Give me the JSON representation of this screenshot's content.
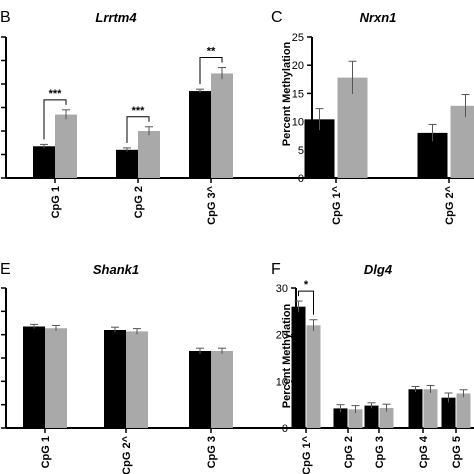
{
  "colors": {
    "group1": "#000000",
    "group2": "#a9a9a9",
    "axis": "#000000",
    "error": "#555555"
  },
  "chart_data": [
    {
      "panel": "B",
      "type": "bar",
      "title": "Lrrtm4",
      "ylabel": "",
      "categories": [
        "CpG 1",
        "CpG 2",
        "CpG 3^"
      ],
      "ylim": [
        0,
        60
      ],
      "yticks": [],
      "series": [
        {
          "values": [
            13.5,
            12.0,
            37.0
          ],
          "errors": [
            0.8,
            0.8,
            0.8
          ]
        },
        {
          "values": [
            27.0,
            20.0,
            44.5
          ],
          "errors": [
            2.0,
            1.8,
            2.5
          ]
        }
      ],
      "significance": [
        {
          "category": 0,
          "label": "***"
        },
        {
          "category": 1,
          "label": "***"
        },
        {
          "category": 2,
          "label": "**"
        }
      ]
    },
    {
      "panel": "C",
      "type": "bar",
      "title": "Nrxn1",
      "ylabel": "Percent Methylation",
      "categories": [
        "CpG 1^",
        "CpG 2^"
      ],
      "ylim": [
        0,
        25
      ],
      "yticks": [
        0,
        5,
        10,
        15,
        20,
        25
      ],
      "series": [
        {
          "values": [
            10.4,
            8.0
          ],
          "errors": [
            1.9,
            1.5
          ]
        },
        {
          "values": [
            17.8,
            12.8
          ],
          "errors": [
            2.9,
            2.0
          ]
        }
      ],
      "significance": []
    },
    {
      "panel": "E",
      "type": "bar",
      "title": "Shank1",
      "ylabel": "",
      "categories": [
        "CpG 1",
        "CpG 2^",
        "CpG 3"
      ],
      "ylim": [
        0,
        40
      ],
      "yticks": [],
      "series": [
        {
          "values": [
            29.0,
            28.0,
            22.0
          ],
          "errors": [
            0.6,
            0.8,
            0.8
          ]
        },
        {
          "values": [
            28.5,
            27.6,
            22.0
          ],
          "errors": [
            0.8,
            0.8,
            0.8
          ]
        }
      ],
      "significance": []
    },
    {
      "panel": "F",
      "type": "bar",
      "title": "Dlg4",
      "ylabel": "Percent Methylation",
      "categories": [
        "CpG 1^",
        "CpG 2",
        "CpG 3",
        "CpG 4",
        "CpG 5"
      ],
      "ylim": [
        0,
        30
      ],
      "yticks": [
        0,
        10,
        20,
        30
      ],
      "series": [
        {
          "values": [
            26.0,
            4.2,
            4.8,
            8.3,
            6.5
          ],
          "errors": [
            1.2,
            0.8,
            0.6,
            0.6,
            1.0
          ]
        },
        {
          "values": [
            22.0,
            4.0,
            4.3,
            8.3,
            7.4
          ],
          "errors": [
            1.2,
            0.8,
            0.8,
            0.8,
            0.8
          ]
        }
      ],
      "significance": [
        {
          "category": 0,
          "label": "*"
        }
      ]
    }
  ]
}
